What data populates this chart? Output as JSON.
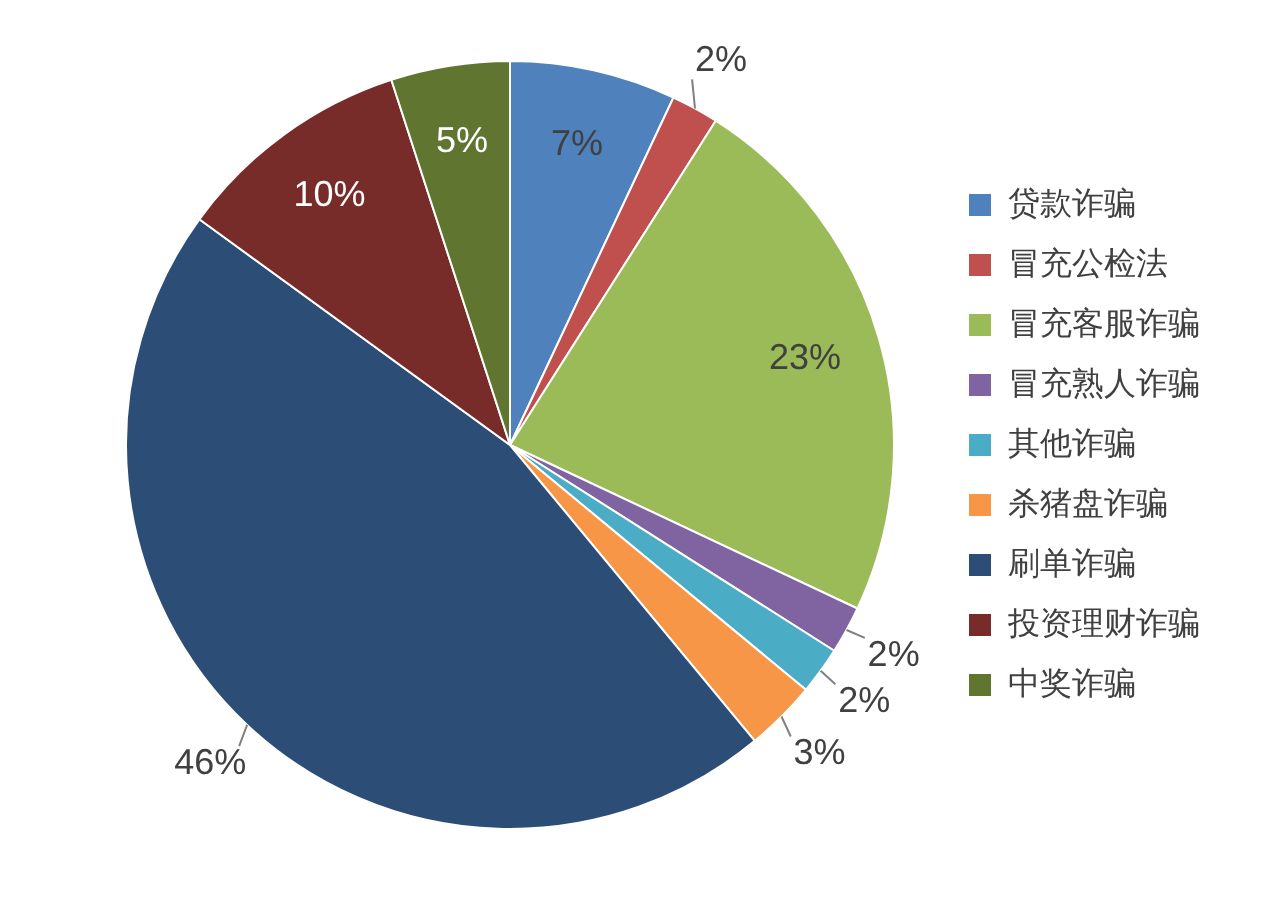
{
  "chart_data": {
    "type": "pie",
    "categories": [
      "贷款诈骗",
      "冒充公检法",
      "冒充客服诈骗",
      "冒充熟人诈骗",
      "其他诈骗",
      "杀猪盘诈骗",
      "刷单诈骗",
      "投资理财诈骗",
      "中奖诈骗"
    ],
    "values": [
      7,
      2,
      23,
      2,
      2,
      3,
      46,
      10,
      5
    ],
    "colors": [
      "#4f81bd",
      "#c0504d",
      "#9bbb59",
      "#8064a2",
      "#4bacc6",
      "#f79646",
      "#2c4d75",
      "#772c2a",
      "#5f7530"
    ],
    "value_labels": [
      "7%",
      "2%",
      "23%",
      "2%",
      "2%",
      "3%",
      "46%",
      "10%",
      "5%"
    ],
    "legend": "right"
  }
}
